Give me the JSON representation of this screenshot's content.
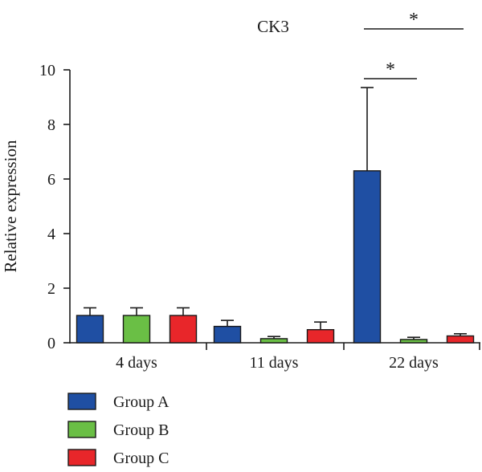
{
  "chart_data": {
    "type": "bar",
    "title": "CK3",
    "xlabel": "",
    "ylabel": "Relative expression",
    "ylim": [
      0,
      10
    ],
    "yticks": [
      0,
      2,
      4,
      6,
      8,
      10
    ],
    "categories": [
      "4 days",
      "11 days",
      "22 days"
    ],
    "series": [
      {
        "name": "Group A",
        "color": "#1f4fa3",
        "values": [
          1.0,
          0.6,
          6.3
        ],
        "errors": [
          0.28,
          0.22,
          3.05
        ]
      },
      {
        "name": "Group B",
        "color": "#6abf45",
        "values": [
          1.0,
          0.15,
          0.12
        ],
        "errors": [
          0.28,
          0.08,
          0.08
        ]
      },
      {
        "name": "Group C",
        "color": "#e8262a",
        "values": [
          1.0,
          0.48,
          0.25
        ],
        "errors": [
          0.28,
          0.28,
          0.08
        ]
      }
    ],
    "annotations": [
      {
        "text": "*",
        "category": "22 days",
        "from": "Group A",
        "to": "Group B"
      },
      {
        "text": "*",
        "category": "22 days",
        "from": "Group A",
        "to": "Group C"
      }
    ],
    "legend_position": "bottom-left"
  }
}
